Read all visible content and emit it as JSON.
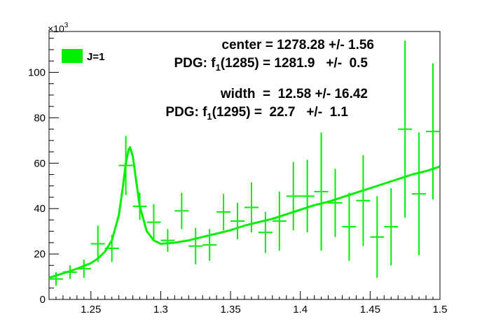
{
  "chart_data": {
    "type": "scatter",
    "xlim": [
      1.22,
      1.5
    ],
    "ylim": [
      0,
      118
    ],
    "y_multiplier_label": "×10",
    "y_multiplier_exp": "3",
    "x_ticks": [
      1.25,
      1.3,
      1.35,
      1.4,
      1.45,
      1.5
    ],
    "x_tick_labels": [
      "1.25",
      "1.3",
      "1.35",
      "1.4",
      "1.45",
      "1.5"
    ],
    "y_ticks": [
      0,
      20,
      40,
      60,
      80,
      100
    ],
    "y_tick_labels": [
      "0",
      "20",
      "40",
      "60",
      "80",
      "100"
    ],
    "grid": false,
    "legend_position": "top-left",
    "series": [
      {
        "name": "J=1",
        "kind": "points",
        "color": "#00ee00",
        "x": [
          1.225,
          1.235,
          1.245,
          1.255,
          1.265,
          1.275,
          1.285,
          1.295,
          1.305,
          1.315,
          1.325,
          1.335,
          1.345,
          1.355,
          1.365,
          1.375,
          1.385,
          1.395,
          1.405,
          1.415,
          1.425,
          1.435,
          1.445,
          1.455,
          1.465,
          1.475,
          1.485,
          1.495
        ],
        "y": [
          9,
          12,
          13.5,
          24.5,
          22.5,
          59,
          41,
          34,
          26,
          39,
          23.5,
          24,
          38.5,
          34.5,
          40.5,
          29.5,
          34.5,
          45.5,
          45.5,
          47.5,
          42.5,
          32,
          43.5,
          27.5,
          32,
          75,
          46.5,
          74
        ],
        "y_err": [
          3,
          3,
          4,
          8,
          6,
          13,
          6,
          8,
          5,
          8,
          8,
          7,
          8,
          8,
          11,
          9,
          13,
          15,
          16,
          26,
          15,
          15,
          20,
          18,
          17,
          39,
          27,
          30
        ],
        "x_err": 0.005
      },
      {
        "name": "fit",
        "kind": "line",
        "color": "#00ee00",
        "x": [
          1.22,
          1.23,
          1.24,
          1.25,
          1.255,
          1.26,
          1.265,
          1.27,
          1.273,
          1.275,
          1.277,
          1.278,
          1.28,
          1.282,
          1.285,
          1.29,
          1.295,
          1.3,
          1.31,
          1.32,
          1.33,
          1.34,
          1.35,
          1.36,
          1.37,
          1.38,
          1.39,
          1.4,
          1.41,
          1.42,
          1.43,
          1.44,
          1.45,
          1.46,
          1.47,
          1.48,
          1.49,
          1.5
        ],
        "y": [
          9.5,
          11.5,
          13.5,
          16,
          18,
          21,
          26,
          37,
          50,
          60,
          66,
          67,
          63,
          54,
          41,
          30,
          26,
          24.5,
          25,
          26,
          27.5,
          29,
          30.5,
          32.5,
          34,
          35.5,
          37.5,
          39.5,
          41.5,
          43,
          45,
          47,
          49,
          51,
          53,
          55,
          56.5,
          58.5
        ]
      }
    ],
    "annotations": [
      {
        "parts": [
          {
            "t": "center = 1278.28 +/- 1.56"
          }
        ]
      },
      {
        "parts": [
          {
            "t": "PDG: f"
          },
          {
            "t": "1",
            "sub": true
          },
          {
            "t": "(1285) = 1281.9   +/-  0.5"
          }
        ]
      },
      {
        "parts": [
          {
            "t": "width  =  12.58 +/- 16.42"
          }
        ]
      },
      {
        "parts": [
          {
            "t": "PDG: f"
          },
          {
            "t": "1",
            "sub": true
          },
          {
            "t": "(1295) =  22.7   +/-  1.1"
          }
        ]
      }
    ]
  }
}
